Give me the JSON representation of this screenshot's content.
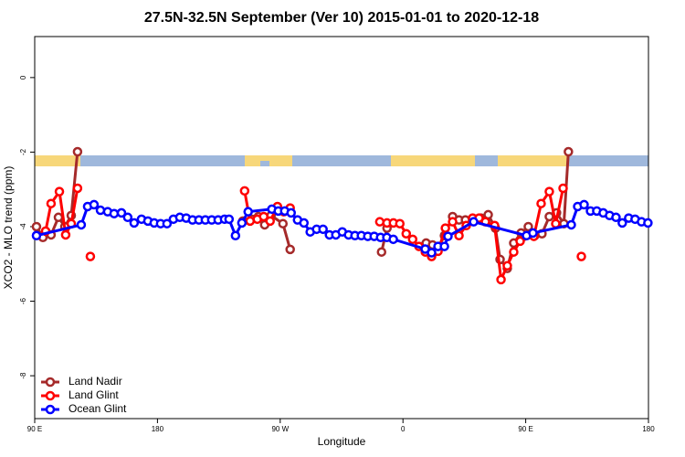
{
  "chart_data": {
    "type": "line",
    "title": "27.5N-32.5N September (Ver 10)   2015-01-01 to 2020-12-18",
    "x_label": "Longitude",
    "y_label": "XCO2 - MLO trend (ppm)",
    "xlim": [
      90,
      540
    ],
    "ylim": [
      -9.15,
      1.1
    ],
    "xticks": [
      {
        "value": 90,
        "label": "90 E"
      },
      180,
      {
        "value": 270,
        "label": "90 W"
      },
      {
        "value": 360,
        "label": "0"
      },
      {
        "value": 450,
        "label": "90 E"
      },
      {
        "value": 540,
        "label": "180"
      }
    ],
    "yticks": [
      -8,
      -6,
      -4,
      -2,
      0
    ],
    "legend": "bottom-left",
    "series": [
      {
        "name": "Land Nadir",
        "color": "#a52a2a",
        "x": [
          91.3,
          96,
          102,
          107.4,
          112.1,
          116.8,
          121.4,
          null,
          242.6,
          249.2,
          254,
          258.6,
          263.3,
          272,
          277.3,
          null,
          344.3,
          348.3,
          null,
          377,
          381.7,
          386.4,
          390.4,
          396.4,
          401.1,
          405.8,
          411.1,
          417.2,
          422.5,
          427.8,
          431.2,
          436.5,
          441.2,
          446.6,
          451.9,
          456.6,
          461.9,
          467.3,
          472.6,
          478,
          481.3
        ],
        "values": [
          -4,
          -4.29,
          -4.22,
          -3.75,
          -4,
          -3.7,
          -1.99,
          null,
          -3.85,
          -3.8,
          -3.73,
          -3.95,
          -3.7,
          -3.92,
          -4.61,
          null,
          -4.68,
          -4.04,
          null,
          -4.44,
          -4.49,
          -4.53,
          -4.24,
          -3.73,
          -3.82,
          -3.82,
          -3.82,
          -3.77,
          -3.68,
          -4.04,
          -4.88,
          -5.12,
          -4.44,
          -4.17,
          -4,
          -4.24,
          -4.19,
          -3.73,
          -3.63,
          -3.92,
          -1.99
        ]
      },
      {
        "name": "Land Glint",
        "color": "#ff0000",
        "x": [
          98,
          102,
          108.1,
          112.7,
          116.8,
          121.4,
          null,
          130.8,
          null,
          243.9,
          247.9,
          253.2,
          257.9,
          262.6,
          268,
          272.6,
          277.3,
          null,
          343,
          348.3,
          353,
          357.7,
          362.4,
          367.1,
          371.7,
          376.4,
          381,
          385.7,
          391.1,
          396.4,
          401.1,
          406.4,
          411.1,
          415.8,
          420.5,
          427.2,
          431.9,
          436.5,
          441.2,
          445.9,
          456,
          461.3,
          467.3,
          472,
          477.4,
          null,
          490.8
        ],
        "values": [
          -4.12,
          -3.38,
          -3.06,
          -4.22,
          -3.92,
          -2.97,
          null,
          -4.8,
          null,
          -3.04,
          -3.85,
          -3.8,
          -3.73,
          -3.85,
          -3.46,
          -3.6,
          -3.5,
          null,
          -3.87,
          -3.9,
          -3.9,
          -3.92,
          -4.19,
          -4.34,
          -4.53,
          -4.68,
          -4.8,
          -4.66,
          -4.04,
          -3.87,
          -4.24,
          -3.97,
          -3.77,
          -3.77,
          -3.87,
          -3.97,
          -5.42,
          -5.05,
          -4.68,
          -4.39,
          -4.26,
          -3.38,
          -3.06,
          -3.92,
          -2.97,
          null,
          -4.8
        ]
      },
      {
        "name": "Ocean Glint",
        "color": "#0000ff",
        "x": [
          91.3,
          124.1,
          128.8,
          133.5,
          138.2,
          143.5,
          148.2,
          153.6,
          158.2,
          162.9,
          168.3,
          173,
          177.6,
          182.3,
          187,
          191.7,
          196.4,
          201.1,
          205.7,
          210.4,
          215.1,
          219.8,
          224.5,
          229.2,
          232.5,
          237.2,
          241.9,
          246.5,
          263.9,
          268.6,
          273.3,
          278,
          282.7,
          287.4,
          292,
          296.7,
          301.4,
          306.1,
          310.8,
          315.5,
          320.1,
          324.8,
          329.5,
          334.2,
          338.9,
          343.6,
          348.2,
          352.9,
          376.3,
          381,
          385.7,
          390.4,
          393,
          411.8,
          450.6,
          455.3,
          483.4,
          488.1,
          492.8,
          497.5,
          502.1,
          506.8,
          511.5,
          516.2,
          520.8,
          525.5,
          530.2,
          534.9,
          539.6
        ],
        "values": [
          -4.24,
          -3.95,
          -3.46,
          -3.41,
          -3.56,
          -3.6,
          -3.65,
          -3.63,
          -3.75,
          -3.9,
          -3.8,
          -3.85,
          -3.9,
          -3.92,
          -3.92,
          -3.8,
          -3.75,
          -3.77,
          -3.82,
          -3.82,
          -3.82,
          -3.82,
          -3.82,
          -3.8,
          -3.8,
          -4.24,
          -3.9,
          -3.6,
          -3.53,
          -3.58,
          -3.58,
          -3.63,
          -3.82,
          -3.9,
          -4.14,
          -4.07,
          -4.07,
          -4.22,
          -4.22,
          -4.14,
          -4.22,
          -4.24,
          -4.24,
          -4.26,
          -4.26,
          -4.29,
          -4.29,
          -4.34,
          -4.6,
          -4.7,
          -4.53,
          -4.53,
          -4.26,
          -3.87,
          -4.24,
          -4.17,
          -3.95,
          -3.46,
          -3.41,
          -3.58,
          -3.58,
          -3.63,
          -3.7,
          -3.75,
          -3.9,
          -3.77,
          -3.8,
          -3.87,
          -3.9
        ]
      }
    ]
  }
}
